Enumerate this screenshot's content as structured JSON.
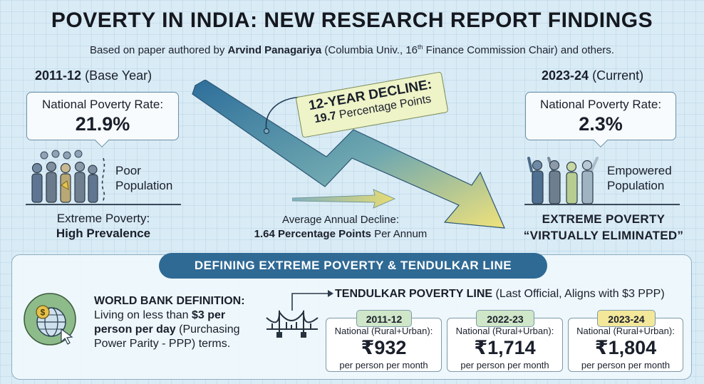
{
  "header": {
    "title": "POVERTY IN INDIA: NEW RESEARCH REPORT FINDINGS",
    "subtitle_pre": "Based on paper authored by ",
    "author": "Arvind Panagariya",
    "subtitle_mid": " (Columbia Univ., 16",
    "sup": "th",
    "subtitle_post": " Finance Commission Chair) and others."
  },
  "left": {
    "year": "2011-12",
    "year_note": "(Base Year)",
    "rate_label": "National Poverty Rate:",
    "rate_value": "21.9%",
    "pop_line1": "Poor",
    "pop_line2": "Population",
    "caption_line1": "Extreme Poverty:",
    "caption_line2": "High Prevalence"
  },
  "right": {
    "year": "2023-24",
    "year_note": "(Current)",
    "rate_label": "National Poverty Rate:",
    "rate_value": "2.3%",
    "pop_line1": "Empowered",
    "pop_line2": "Population",
    "caption_line1": "EXTREME POVERTY",
    "caption_line2": "“VIRTUALLY ELIMINATED”"
  },
  "middle": {
    "tag_line1": "12-YEAR DECLINE:",
    "tag_value": "19.7",
    "tag_rest": " Percentage Points",
    "avg_line1": "Average Annual Decline:",
    "avg_bold": "1.64 Percentage Points",
    "avg_rest": " Per Annum"
  },
  "definition": {
    "banner": "DEFINING EXTREME POVERTY & TENDULKAR LINE",
    "wb_title": "WORLD BANK DEFINITION:",
    "wb_l2_pre": "Living on less than ",
    "wb_l2_bold": "$3 per",
    "wb_l3_bold": "person per day",
    "wb_l3_rest": " (Purchasing",
    "wb_l4": "Power Parity - PPP) terms.",
    "tend_title": "TENDULKAR POVERTY LINE",
    "tend_note": " (Last Official, Aligns with $3 PPP)",
    "cards": [
      {
        "year": "2011-12",
        "label": "National (Rural+Urban):",
        "amount": "₹932",
        "unit": "per person per month",
        "pill_color": "#cfe6c8"
      },
      {
        "year": "2022-23",
        "label": "National (Rural+Urban):",
        "amount": "₹1,714",
        "unit": "per person per month",
        "pill_color": "#cfe6c8"
      },
      {
        "year": "2023-24",
        "label": "National (Rural+Urban):",
        "amount": "₹1,804",
        "unit": "per person per month",
        "pill_color": "#f3e79a"
      }
    ]
  }
}
